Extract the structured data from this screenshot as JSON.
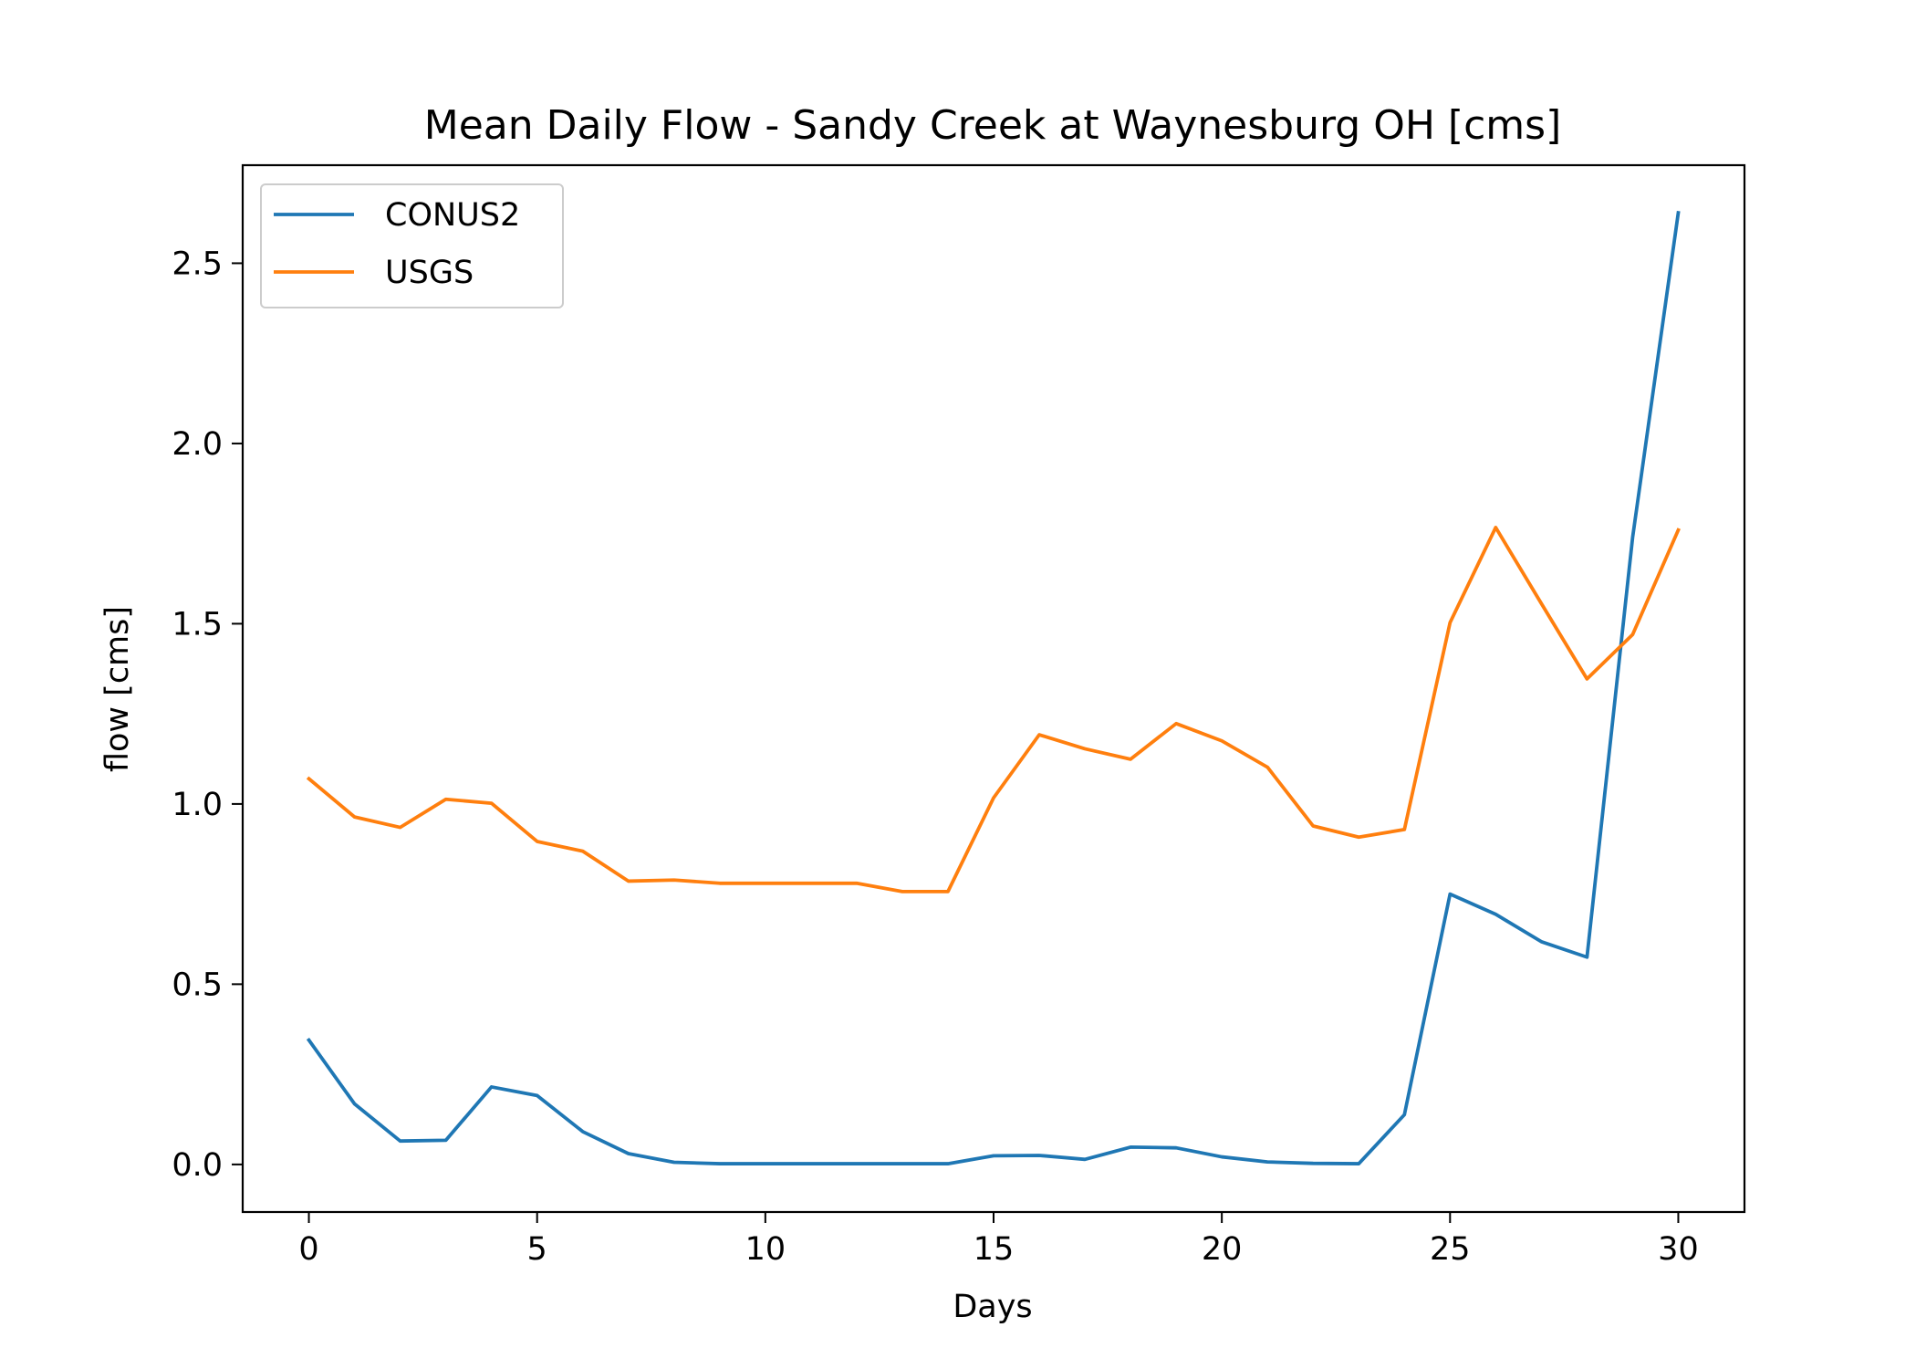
{
  "chart_data": {
    "type": "line",
    "title": "Mean Daily Flow - Sandy Creek at Waynesburg OH [cms]",
    "xlabel": "Days",
    "ylabel": "flow [cms]",
    "xlim": [
      -1.45,
      31.45
    ],
    "ylim": [
      -0.132,
      2.772
    ],
    "xticks": [
      0,
      5,
      10,
      15,
      20,
      25,
      30
    ],
    "xtick_labels": [
      "0",
      "5",
      "10",
      "15",
      "20",
      "25",
      "30"
    ],
    "yticks": [
      0.0,
      0.5,
      1.0,
      1.5,
      2.0,
      2.5
    ],
    "ytick_labels": [
      "0.0",
      "0.5",
      "1.0",
      "1.5",
      "2.0",
      "2.5"
    ],
    "grid": false,
    "legend_position": "upper left",
    "x": [
      0,
      1,
      2,
      3,
      4,
      5,
      6,
      7,
      8,
      9,
      10,
      11,
      12,
      13,
      14,
      15,
      16,
      17,
      18,
      19,
      20,
      21,
      22,
      23,
      24,
      25,
      26,
      27,
      28,
      29,
      30
    ],
    "series": [
      {
        "name": "CONUS2",
        "color": "#1f77b4",
        "values": [
          0.345,
          0.168,
          0.065,
          0.067,
          0.215,
          0.191,
          0.091,
          0.03,
          0.006,
          0.002,
          0.002,
          0.002,
          0.002,
          0.002,
          0.002,
          0.024,
          0.025,
          0.014,
          0.048,
          0.046,
          0.021,
          0.007,
          0.003,
          0.002,
          0.138,
          0.75,
          0.694,
          0.618,
          0.575,
          1.74,
          2.64
        ]
      },
      {
        "name": "USGS",
        "color": "#ff7f0e",
        "values": [
          1.07,
          0.964,
          0.935,
          1.013,
          1.002,
          0.896,
          0.869,
          0.786,
          0.789,
          0.78,
          0.78,
          0.78,
          0.78,
          0.757,
          0.757,
          1.017,
          1.192,
          1.153,
          1.124,
          1.223,
          1.175,
          1.102,
          0.939,
          0.908,
          0.929,
          1.503,
          1.767,
          1.556,
          1.347,
          1.47,
          1.76
        ]
      }
    ]
  }
}
